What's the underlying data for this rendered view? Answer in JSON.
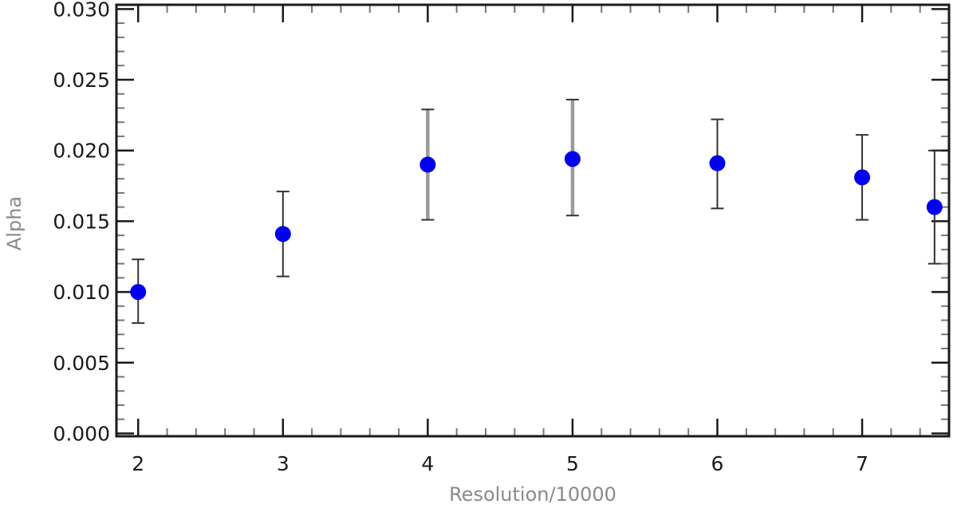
{
  "chart_data": {
    "type": "scatter",
    "title": "",
    "xlabel": "Resolution/10000",
    "ylabel": "Alpha",
    "xlim": [
      1.85,
      7.6
    ],
    "ylim": [
      -0.0002,
      0.0303
    ],
    "x_ticks": [
      2,
      3,
      4,
      5,
      6,
      7
    ],
    "y_ticks": [
      0.0,
      0.005,
      0.01,
      0.015,
      0.02,
      0.025,
      0.03
    ],
    "y_tick_labels": [
      "0.000",
      "0.005",
      "0.010",
      "0.015",
      "0.020",
      "0.025",
      "0.030"
    ],
    "grid": false,
    "legend": "none",
    "point_color": "#0000ee",
    "series": [
      {
        "x": [
          2,
          3,
          4,
          5,
          6,
          7,
          7.5
        ],
        "y": [
          0.01,
          0.0141,
          0.019,
          0.0194,
          0.0191,
          0.0181,
          0.016
        ],
        "y_err_low": [
          0.0078,
          0.0111,
          0.0151,
          0.0154,
          0.0159,
          0.0151,
          0.012
        ],
        "y_err_high": [
          0.0123,
          0.0171,
          0.0229,
          0.0236,
          0.0222,
          0.0211,
          0.02
        ]
      }
    ]
  }
}
